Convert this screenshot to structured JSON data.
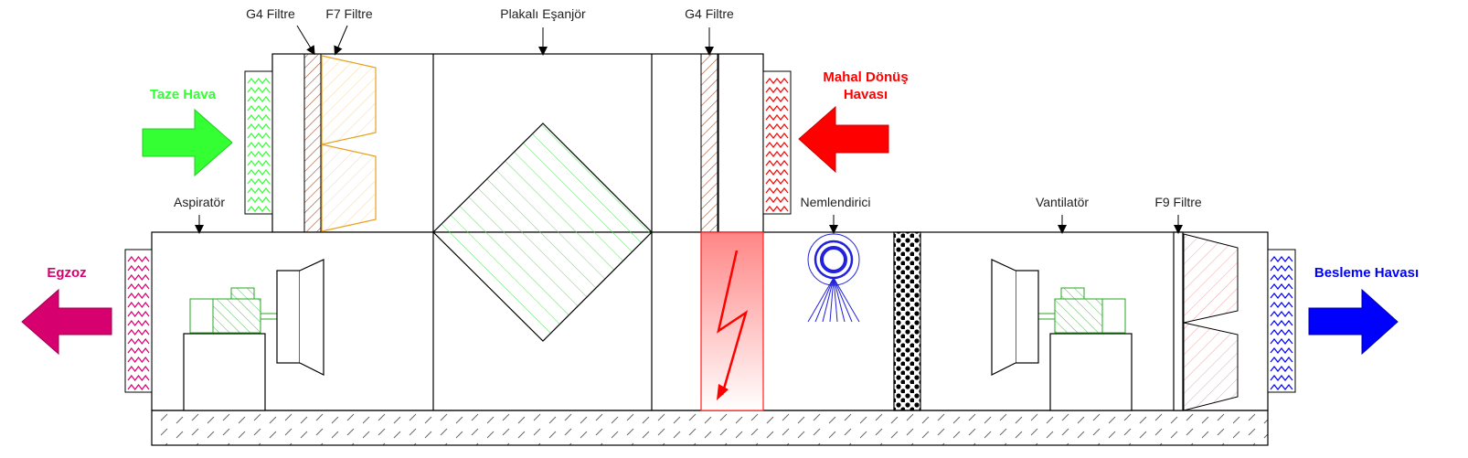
{
  "labels": {
    "g4_filter_1": "G4 Filtre",
    "f7_filter": "F7 Filtre",
    "plate_exchanger": "Plakalı Eşanjör",
    "g4_filter_2": "G4 Filtre",
    "return_air_line1": "Mahal Dönüş",
    "return_air_line2": "Havası",
    "fresh_air": "Taze Hava",
    "exhaust_fan": "Aspiratör",
    "humidifier": "Nemlendirici",
    "supply_fan": "Vantilatör",
    "f9_filter": "F9 Filtre",
    "exhaust_air": "Egzoz",
    "supply_air": "Besleme Havası"
  },
  "colors": {
    "fresh_air": "#33ff33",
    "return_air": "#ff0000",
    "exhaust_air": "#d6006e",
    "supply_air": "#0000ff",
    "exchanger_hatch": "#66dd66",
    "filter_hatch": "#a0522d",
    "f7_filter": "#e8a020",
    "f9_filter": "#e08080",
    "heater": "#ff0000",
    "humidifier": "#2222dd",
    "motor": "#22aa22"
  }
}
